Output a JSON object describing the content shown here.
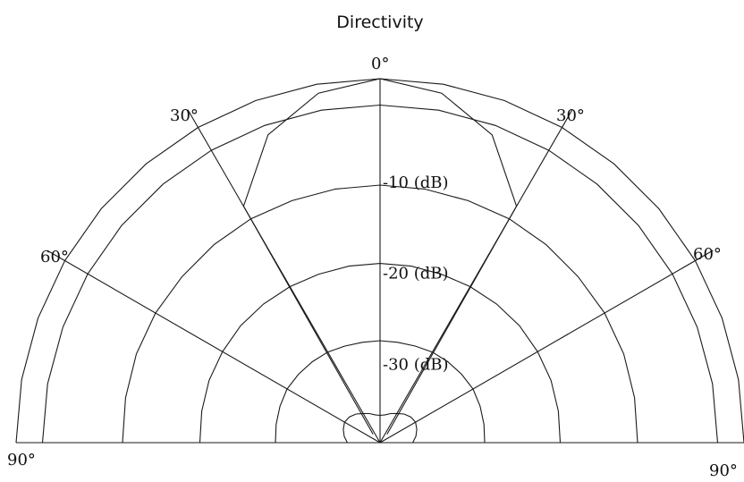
{
  "chart_data": {
    "type": "polar-line",
    "title": "Directivity",
    "angle_range_deg": [
      -90,
      90
    ],
    "angle_tick_labels": [
      "90°",
      "60°",
      "30°",
      "0°",
      "30°",
      "60°",
      "90°"
    ],
    "angle_tick_values": [
      -90,
      -60,
      -30,
      0,
      30,
      60,
      90
    ],
    "radial_unit": "dB",
    "radial_tick_labels": [
      "-10 (dB)",
      "-20 (dB)",
      "-30 (dB)"
    ],
    "radial_tick_values": [
      -10,
      -20,
      -30
    ],
    "rlim": [
      -40,
      0
    ],
    "grid": true,
    "legend": "none",
    "colors": {
      "line": "#1a1a1a",
      "background": "#ffffff"
    },
    "series": [
      {
        "angles_deg": [
          -90,
          -80,
          -70,
          -60,
          -50,
          -40,
          -30,
          -20,
          -10,
          0,
          10,
          20,
          30,
          40,
          50,
          60,
          70,
          80,
          90
        ],
        "values_db": [
          0,
          0,
          0,
          0,
          0,
          0,
          0,
          0,
          0,
          0,
          0,
          0,
          0,
          0,
          0,
          0,
          0,
          0,
          0
        ]
      },
      {
        "angles_deg": [
          -90,
          -80,
          -70,
          -60,
          -50,
          -40,
          -30,
          -20,
          -10,
          0,
          10,
          20,
          30,
          40,
          50,
          60,
          70,
          80,
          90
        ],
        "values_db": [
          -2.9,
          -2.9,
          -2.9,
          -2.9,
          -2.9,
          -2.9,
          -2.9,
          -2.9,
          -2.9,
          -2.9,
          -2.9,
          -2.9,
          -2.9,
          -2.9,
          -2.9,
          -2.9,
          -2.9,
          -2.9,
          -2.9
        ]
      },
      {
        "angles_deg": [
          -90,
          -80,
          -70,
          -60,
          -50,
          -40,
          -30,
          -20,
          -10,
          0,
          10,
          20,
          30,
          40,
          50,
          60,
          70,
          80,
          90
        ],
        "values_db": [
          -11.7,
          -11.6,
          -11.5,
          -11.5,
          -11.6,
          -11.6,
          -11.6,
          -11.7,
          -11.7,
          -11.7,
          -11.7,
          -11.7,
          -11.6,
          -11.6,
          -11.6,
          -11.5,
          -11.5,
          -11.6,
          -11.7
        ]
      },
      {
        "angles_deg": [
          -90,
          -80,
          -70,
          -60,
          -50,
          -40,
          -30,
          -20,
          -10,
          0,
          10,
          20,
          30,
          40,
          50,
          60,
          70,
          80,
          90
        ],
        "values_db": [
          -20.2,
          -20.1,
          -20.0,
          -20.0,
          -20.0,
          -20.1,
          -20.2,
          -20.3,
          -20.3,
          -20.3,
          -20.3,
          -20.3,
          -20.2,
          -20.1,
          -20.0,
          -20.0,
          -20.0,
          -20.1,
          -20.2
        ]
      },
      {
        "angles_deg": [
          -90,
          -80,
          -70,
          -60,
          -50,
          -40,
          -30,
          -20,
          -10,
          0,
          10,
          20,
          30,
          40,
          50,
          60,
          70,
          80,
          90
        ],
        "values_db": [
          -28.5,
          -28.4,
          -28.3,
          -28.2,
          -28.3,
          -28.4,
          -28.5,
          -28.7,
          -28.8,
          -28.8,
          -28.8,
          -28.7,
          -28.5,
          -28.4,
          -28.3,
          -28.2,
          -28.3,
          -28.4,
          -28.5
        ]
      },
      {
        "angles_deg": [
          -90,
          -80,
          -70,
          -60,
          -50,
          -40,
          -30,
          -20,
          -10,
          0,
          10,
          20,
          30,
          40,
          50,
          60,
          70,
          80,
          90
        ],
        "values_db": [
          -36.4,
          -36.0,
          -35.7,
          -35.5,
          -35.6,
          -35.9,
          -36.3,
          -36.6,
          -36.9,
          -37.0,
          -36.9,
          -36.6,
          -36.3,
          -35.9,
          -35.6,
          -35.5,
          -35.7,
          -36.0,
          -36.4
        ]
      },
      {
        "angles_deg": [
          -40,
          -30,
          -20,
          -10,
          0,
          10,
          20,
          30,
          40
        ],
        "values_db": [
          -38.8,
          -10.0,
          -4.0,
          -1.0,
          0.0,
          -1.0,
          -4.0,
          -10.0,
          -38.8
        ]
      }
    ]
  }
}
